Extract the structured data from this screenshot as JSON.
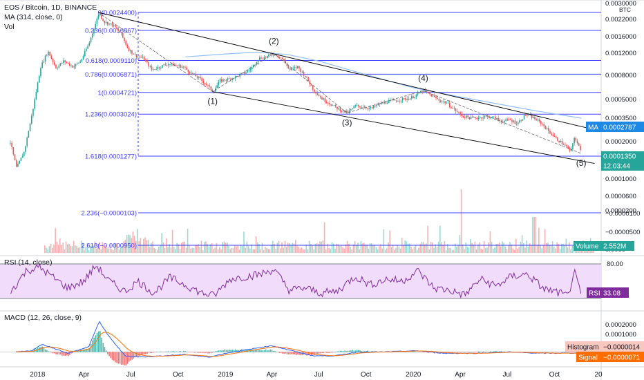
{
  "header": {
    "symbol_line": "EOS / Bitcoin, 1D, BINANCE",
    "ma_line": "MA (314, close, 0)",
    "vol_line": "Vol"
  },
  "colors": {
    "fib": "#3d3dff",
    "up": "#26a69a",
    "down": "#ef5350",
    "ma": "#90bff9",
    "rsi": "#7e2c9c",
    "rsi_band": "#f1dcfb",
    "macd": "#2962ff",
    "signal": "#ff6d00",
    "trend": "#000000",
    "grid": "#e9ecf1"
  },
  "chart_data": [
    {
      "type": "line",
      "name": "main-price",
      "title": "EOS / Bitcoin, 1D, BINANCE",
      "scale": "log",
      "currency": "BTC",
      "ylim": [
        6e-05,
        0.003
      ],
      "y_ticks": [
        "0.0030000",
        "0.0022000",
        "0.0016000",
        "0.0012000",
        "0.0008000",
        "0.0005000",
        "0.0003500",
        "0.0002000",
        "0.0001000",
        "0.0000600",
        "0.0000200"
      ],
      "x_ticks": [
        "2018",
        "Apr",
        "Jul",
        "Oct",
        "2019",
        "Apr",
        "Jul",
        "Oct",
        "2020",
        "Apr",
        "Jul",
        "Oct",
        "20"
      ],
      "price_path": [
        [
          "2017-11-08",
          0.00017
        ],
        [
          "2017-11-20",
          0.0001
        ],
        [
          "2017-12-05",
          0.00014
        ],
        [
          "2017-12-20",
          0.0003
        ],
        [
          "2018-01-06",
          0.0008
        ],
        [
          "2018-01-20",
          0.0011
        ],
        [
          "2018-02-05",
          0.00078
        ],
        [
          "2018-02-20",
          0.0009
        ],
        [
          "2018-03-10",
          0.0008
        ],
        [
          "2018-03-25",
          0.0009
        ],
        [
          "2018-04-10",
          0.0013
        ],
        [
          "2018-04-29",
          0.0024
        ],
        [
          "2018-05-10",
          0.002
        ],
        [
          "2018-05-25",
          0.0019
        ],
        [
          "2018-06-10",
          0.0016
        ],
        [
          "2018-06-25",
          0.00115
        ],
        [
          "2018-07-10",
          0.001
        ],
        [
          "2018-07-25",
          0.00095
        ],
        [
          "2018-08-10",
          0.00075
        ],
        [
          "2018-08-25",
          0.0008
        ],
        [
          "2018-09-10",
          0.00085
        ],
        [
          "2018-09-25",
          0.00082
        ],
        [
          "2018-10-10",
          0.0008
        ],
        [
          "2018-10-25",
          0.0007
        ],
        [
          "2018-11-10",
          0.00063
        ],
        [
          "2018-11-25",
          0.00055
        ],
        [
          "2018-12-07",
          0.00048
        ],
        [
          "2018-12-20",
          0.0006
        ],
        [
          "2019-01-05",
          0.00062
        ],
        [
          "2019-01-20",
          0.00065
        ],
        [
          "2019-02-05",
          0.0007
        ],
        [
          "2019-02-20",
          0.00078
        ],
        [
          "2019-03-05",
          0.00095
        ],
        [
          "2019-03-20",
          0.00098
        ],
        [
          "2019-04-05",
          0.00105
        ],
        [
          "2019-04-20",
          0.00095
        ],
        [
          "2019-05-05",
          0.00075
        ],
        [
          "2019-05-20",
          0.0008
        ],
        [
          "2019-06-05",
          0.00065
        ],
        [
          "2019-06-20",
          0.0005
        ],
        [
          "2019-07-05",
          0.00042
        ],
        [
          "2019-07-20",
          0.00038
        ],
        [
          "2019-08-05",
          0.00034
        ],
        [
          "2019-08-25",
          0.00031
        ],
        [
          "2019-09-10",
          0.00036
        ],
        [
          "2019-09-25",
          0.00035
        ],
        [
          "2019-10-10",
          0.00034
        ],
        [
          "2019-10-25",
          0.00037
        ],
        [
          "2019-11-10",
          0.00039
        ],
        [
          "2019-11-25",
          0.0004
        ],
        [
          "2019-12-10",
          0.00041
        ],
        [
          "2019-12-25",
          0.00042
        ],
        [
          "2020-01-10",
          0.00046
        ],
        [
          "2020-01-20",
          0.00049
        ],
        [
          "2020-02-05",
          0.00044
        ],
        [
          "2020-02-20",
          0.0004
        ],
        [
          "2020-03-05",
          0.00038
        ],
        [
          "2020-03-20",
          0.00033
        ],
        [
          "2020-04-05",
          0.00029
        ],
        [
          "2020-04-20",
          0.00028
        ],
        [
          "2020-05-05",
          0.00028
        ],
        [
          "2020-05-20",
          0.00029
        ],
        [
          "2020-06-05",
          0.00028
        ],
        [
          "2020-06-20",
          0.00026
        ],
        [
          "2020-07-05",
          0.00027
        ],
        [
          "2020-07-20",
          0.00025
        ],
        [
          "2020-08-05",
          0.0003
        ],
        [
          "2020-08-20",
          0.00028
        ],
        [
          "2020-09-05",
          0.00025
        ],
        [
          "2020-09-20",
          0.00021
        ],
        [
          "2020-10-05",
          0.00018
        ],
        [
          "2020-10-20",
          0.00016
        ],
        [
          "2020-11-01",
          0.00014
        ],
        [
          "2020-11-08",
          0.00019
        ],
        [
          "2020-11-15",
          0.00016
        ],
        [
          "2020-11-22",
          0.000135
        ]
      ],
      "ma_path": [
        [
          "2018-10-15",
          0.00098
        ],
        [
          "2019-01-01",
          0.00104
        ],
        [
          "2019-03-01",
          0.00108
        ],
        [
          "2019-05-01",
          0.00103
        ],
        [
          "2019-07-01",
          0.0009
        ],
        [
          "2019-10-01",
          0.00068
        ],
        [
          "2020-01-01",
          0.00052
        ],
        [
          "2020-04-01",
          0.00043
        ],
        [
          "2020-07-01",
          0.00036
        ],
        [
          "2020-09-01",
          0.00032
        ],
        [
          "2020-11-22",
          0.0002787
        ]
      ],
      "fib_levels": [
        {
          "label": "0(0.0024400)",
          "value": 0.00244
        },
        {
          "label": "0.236(0.0016867)",
          "value": 0.0016867
        },
        {
          "label": "0.618(0.0009110)",
          "value": 0.000911
        },
        {
          "label": "0.786(0.0006871)",
          "value": 0.0006871
        },
        {
          "label": "1(0.0004721)",
          "value": 0.0004721
        },
        {
          "label": "1.236(0.0003024)",
          "value": 0.0003024
        },
        {
          "label": "1.618(0.0001277)",
          "value": 0.0001277
        }
      ],
      "fib_levels_extended": [
        {
          "label": "2.236(−0.0000103)",
          "value": -1.03e-05
        },
        {
          "label": "2.618(−0.0000950)",
          "value": -9.5e-05
        }
      ],
      "extended_ticks": [
        "−0.0000100",
        "−0.0000500",
        "0.0000"
      ],
      "wave_labels": [
        {
          "label": "(1)",
          "date": "2018-12-07",
          "value": 0.00048,
          "pos": "below"
        },
        {
          "label": "(2)",
          "date": "2019-04-05",
          "value": 0.00105,
          "pos": "above"
        },
        {
          "label": "(3)",
          "date": "2019-08-25",
          "value": 0.00031,
          "pos": "below"
        },
        {
          "label": "(4)",
          "date": "2020-01-20",
          "value": 0.00049,
          "pos": "above"
        },
        {
          "label": "(5)",
          "date": "2020-11-22",
          "value": 0.000135,
          "pos": "below"
        }
      ],
      "trendlines": [
        {
          "from": [
            "2018-04-29",
            0.00244
          ],
          "to": [
            "2020-12-18",
            0.00022
          ]
        },
        {
          "from": [
            "2018-12-07",
            0.00048
          ],
          "to": [
            "2020-12-18",
            0.00011
          ]
        }
      ],
      "badges": {
        "ma_label": "MA",
        "ma_value": "0.0002787",
        "price_value": "0.0001350",
        "countdown": "12:03:44",
        "volume_label": "Volume",
        "volume_value": "2.552M"
      }
    },
    {
      "type": "line",
      "name": "rsi",
      "title": "RSI (14, close)",
      "ylim": [
        30,
        80
      ],
      "y_ticks": [
        "80.00"
      ],
      "band": [
        30,
        80
      ],
      "badge_label": "RSI",
      "badge_value": "33.08",
      "points": [
        [
          "2017-11-10",
          40
        ],
        [
          "2017-12-10",
          70
        ],
        [
          "2018-01-05",
          75
        ],
        [
          "2018-02-01",
          60
        ],
        [
          "2018-03-01",
          45
        ],
        [
          "2018-04-01",
          55
        ],
        [
          "2018-04-25",
          78
        ],
        [
          "2018-05-20",
          55
        ],
        [
          "2018-06-20",
          40
        ],
        [
          "2018-07-15",
          55
        ],
        [
          "2018-08-15",
          38
        ],
        [
          "2018-09-15",
          60
        ],
        [
          "2018-10-15",
          50
        ],
        [
          "2018-11-15",
          38
        ],
        [
          "2018-12-10",
          34
        ],
        [
          "2019-01-10",
          58
        ],
        [
          "2019-02-10",
          62
        ],
        [
          "2019-03-10",
          65
        ],
        [
          "2019-04-05",
          72
        ],
        [
          "2019-05-05",
          42
        ],
        [
          "2019-06-05",
          45
        ],
        [
          "2019-07-05",
          38
        ],
        [
          "2019-08-05",
          40
        ],
        [
          "2019-09-10",
          62
        ],
        [
          "2019-10-10",
          50
        ],
        [
          "2019-11-10",
          58
        ],
        [
          "2019-12-10",
          55
        ],
        [
          "2020-01-10",
          70
        ],
        [
          "2020-02-10",
          45
        ],
        [
          "2020-03-10",
          42
        ],
        [
          "2020-04-10",
          35
        ],
        [
          "2020-05-10",
          58
        ],
        [
          "2020-06-10",
          48
        ],
        [
          "2020-07-10",
          62
        ],
        [
          "2020-08-10",
          65
        ],
        [
          "2020-09-10",
          44
        ],
        [
          "2020-10-10",
          38
        ],
        [
          "2020-10-28",
          33
        ],
        [
          "2020-11-08",
          70
        ],
        [
          "2020-11-22",
          33.08
        ]
      ]
    },
    {
      "type": "bar",
      "name": "macd",
      "title": "MACD (12, 26, close, 9)",
      "ylim": [
        -9e-05,
        0.00028
      ],
      "y_ticks": [
        "0.0002000",
        "0.0001000"
      ],
      "histogram_label": "Histogram",
      "histogram_value": "−0.0000014",
      "signal_label": "Signal",
      "signal_value": "−0.0000071",
      "macd_points": [
        [
          "2017-11-20",
          0
        ],
        [
          "2017-12-20",
          1e-05
        ],
        [
          "2018-01-10",
          6e-05
        ],
        [
          "2018-02-01",
          3e-05
        ],
        [
          "2018-03-01",
          -1e-05
        ],
        [
          "2018-04-10",
          4e-05
        ],
        [
          "2018-05-01",
          0.00024
        ],
        [
          "2018-05-20",
          0.00012
        ],
        [
          "2018-06-20",
          -3e-05
        ],
        [
          "2018-07-20",
          -4e-05
        ],
        [
          "2018-09-01",
          -3e-05
        ],
        [
          "2018-10-15",
          -2e-05
        ],
        [
          "2018-12-01",
          -4e-05
        ],
        [
          "2019-01-01",
          -1e-05
        ],
        [
          "2019-02-15",
          2e-05
        ],
        [
          "2019-04-01",
          5e-05
        ],
        [
          "2019-05-10",
          1e-05
        ],
        [
          "2019-06-20",
          -3e-05
        ],
        [
          "2019-08-01",
          -3e-05
        ],
        [
          "2019-09-15",
          0.0
        ],
        [
          "2019-11-01",
          0.0
        ],
        [
          "2020-01-10",
          1e-05
        ],
        [
          "2020-03-01",
          -1e-05
        ],
        [
          "2020-05-01",
          -1e-05
        ],
        [
          "2020-07-01",
          0.0
        ],
        [
          "2020-09-01",
          -1e-05
        ],
        [
          "2020-11-22",
          -8.5e-06
        ]
      ]
    }
  ]
}
